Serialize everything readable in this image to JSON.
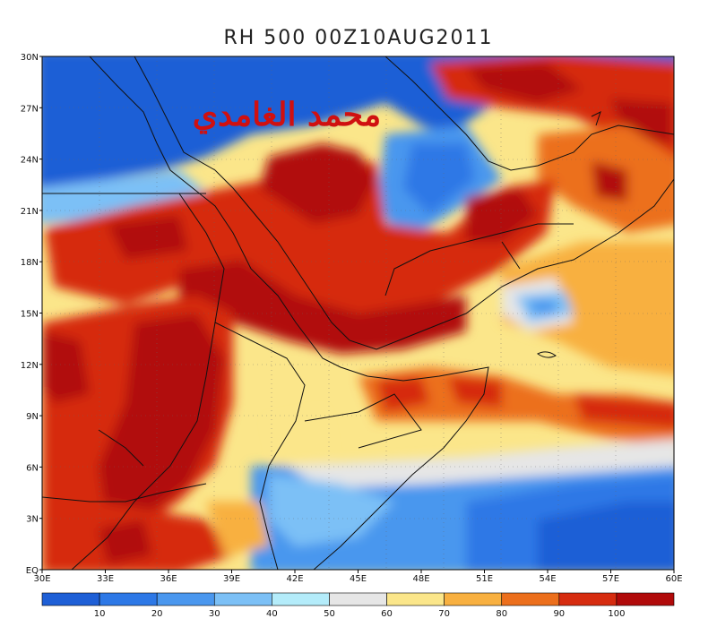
{
  "title": "RH 500  00Z10AUG2011",
  "watermark": "محمد الغامدي",
  "map": {
    "lon_labels": [
      "30E",
      "33E",
      "36E",
      "39E",
      "42E",
      "45E",
      "48E",
      "51E",
      "54E",
      "57E",
      "60E"
    ],
    "lat_labels": [
      "EQ",
      "3N",
      "6N",
      "9N",
      "12N",
      "15N",
      "18N",
      "21N",
      "24N",
      "27N",
      "30N"
    ]
  },
  "colorbar": {
    "labels": [
      "10",
      "20",
      "30",
      "40",
      "50",
      "60",
      "70",
      "80",
      "90",
      "100"
    ],
    "colors": [
      "#1e5fd6",
      "#2d78e6",
      "#4a97ee",
      "#7cc0f6",
      "#b4ecfa",
      "#e6e6e6",
      "#fbe68a",
      "#f8b040",
      "#ec6f1c",
      "#d62c10",
      "#b10a0a",
      "#8c0303"
    ]
  }
}
